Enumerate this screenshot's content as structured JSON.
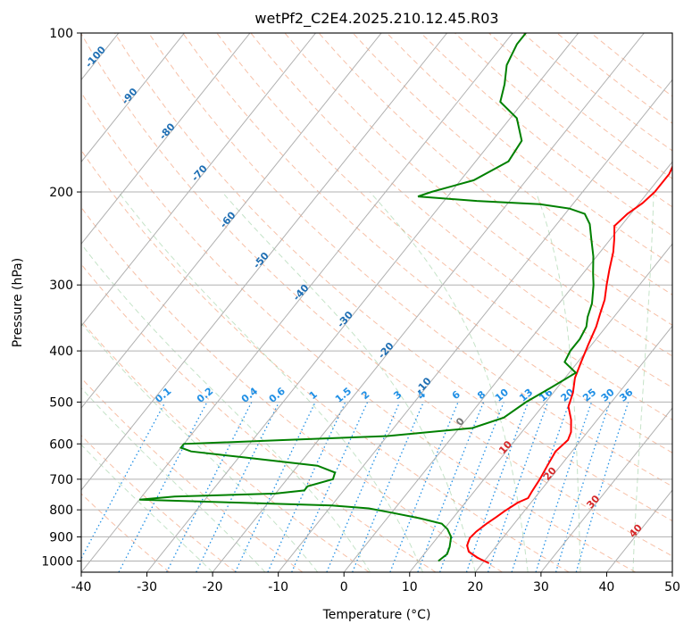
{
  "chart_data": {
    "type": "line",
    "title": "wetPf2_C2E4.2025.210.12.45.R03",
    "xlabel": "Temperature (°C)",
    "ylabel": "Pressure (hPa)",
    "xlim": [
      -40,
      50
    ],
    "ylim": [
      1050,
      100
    ],
    "y_scale": "log",
    "grid": true,
    "x_ticks": [
      -40,
      -30,
      -20,
      -10,
      0,
      10,
      20,
      30,
      40,
      50
    ],
    "y_ticks": [
      100,
      200,
      300,
      400,
      500,
      600,
      700,
      800,
      900,
      1000
    ],
    "isotherm_labels": [
      -100,
      -90,
      -80,
      -70,
      -60,
      -50,
      -40,
      -30,
      -20,
      -10,
      0,
      10,
      20,
      30,
      40
    ],
    "mixing_ratio_labels": [
      "0.1",
      "0.2",
      "0.4",
      "0.6",
      "1",
      "1.5",
      "2",
      "3",
      "4",
      "6",
      "8",
      "10",
      "13",
      "16",
      "20",
      "25",
      "30",
      "36"
    ],
    "series": [
      {
        "color": "#ff0000",
        "points": [
          [
            1010,
            21
          ],
          [
            985,
            18.5
          ],
          [
            960,
            16.5
          ],
          [
            935,
            15.5
          ],
          [
            905,
            15
          ],
          [
            880,
            15.2
          ],
          [
            850,
            15.8
          ],
          [
            825,
            16.5
          ],
          [
            805,
            17
          ],
          [
            790,
            17.5
          ],
          [
            775,
            18
          ],
          [
            760,
            19
          ],
          [
            740,
            18.8
          ],
          [
            700,
            18.5
          ],
          [
            660,
            18
          ],
          [
            620,
            17.5
          ],
          [
            590,
            18
          ],
          [
            570,
            17.5
          ],
          [
            540,
            16
          ],
          [
            510,
            14
          ],
          [
            480,
            13
          ],
          [
            450,
            11.5
          ],
          [
            420,
            10.5
          ],
          [
            390,
            9.5
          ],
          [
            360,
            8.5
          ],
          [
            340,
            7.5
          ],
          [
            320,
            6.5
          ],
          [
            300,
            5
          ],
          [
            280,
            3.5
          ],
          [
            260,
            2
          ],
          [
            245,
            0.5
          ],
          [
            232,
            -1
          ],
          [
            220,
            -0.5
          ],
          [
            210,
            0.5
          ],
          [
            200,
            1
          ],
          [
            185,
            1
          ],
          [
            170,
            0
          ],
          [
            155,
            -1
          ],
          [
            140,
            -1.5
          ],
          [
            128,
            -1.5
          ],
          [
            118,
            -2.5
          ],
          [
            110,
            -3
          ],
          [
            105,
            -1
          ],
          [
            100,
            1
          ]
        ]
      },
      {
        "color": "#008000",
        "points": [
          [
            1000,
            13
          ],
          [
            970,
            13.5
          ],
          [
            940,
            13
          ],
          [
            900,
            12
          ],
          [
            870,
            10.5
          ],
          [
            850,
            9
          ],
          [
            830,
            5
          ],
          [
            810,
            0
          ],
          [
            795,
            -4
          ],
          [
            785,
            -10
          ],
          [
            775,
            -25
          ],
          [
            765,
            -40
          ],
          [
            755,
            -35
          ],
          [
            745,
            -20
          ],
          [
            735,
            -16
          ],
          [
            722,
            -16
          ],
          [
            700,
            -13
          ],
          [
            680,
            -13.5
          ],
          [
            660,
            -17
          ],
          [
            635,
            -30
          ],
          [
            620,
            -38
          ],
          [
            610,
            -40
          ],
          [
            600,
            -40
          ],
          [
            590,
            -25
          ],
          [
            580,
            -10
          ],
          [
            560,
            2
          ],
          [
            535,
            5.5
          ],
          [
            500,
            7
          ],
          [
            470,
            9
          ],
          [
            440,
            11
          ],
          [
            420,
            8
          ],
          [
            400,
            7.5
          ],
          [
            380,
            7.5
          ],
          [
            360,
            7
          ],
          [
            345,
            6
          ],
          [
            325,
            5
          ],
          [
            300,
            3
          ],
          [
            285,
            1.5
          ],
          [
            265,
            -0.5
          ],
          [
            245,
            -3
          ],
          [
            230,
            -5
          ],
          [
            220,
            -7
          ],
          [
            215,
            -10
          ],
          [
            211,
            -15
          ],
          [
            208,
            -25
          ],
          [
            204,
            -34.5
          ],
          [
            200,
            -33
          ],
          [
            190,
            -28
          ],
          [
            175,
            -25
          ],
          [
            160,
            -25.5
          ],
          [
            145,
            -29
          ],
          [
            135,
            -33.5
          ],
          [
            125,
            -35
          ],
          [
            115,
            -37
          ],
          [
            105,
            -38
          ],
          [
            100,
            -38
          ]
        ]
      }
    ]
  }
}
